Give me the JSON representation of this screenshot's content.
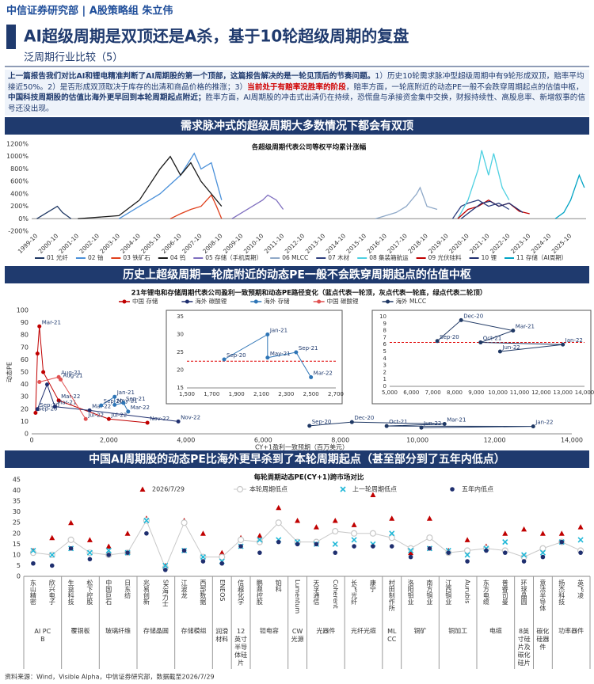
{
  "header": {
    "org": "中信证券研究部 | A股策略组 朱立伟",
    "title": "AI超级周期是双顶还是A杀，基于10轮超级周期的复盘",
    "subtitle": "泛周期行业比较（5）"
  },
  "summary": [
    {
      "text": "上一篇报告我们对比AI和锂电精准判断了AI周期股的第一个顶部，这篇报告解决的是一轮见顶后的节奏问题。",
      "style": "bold"
    },
    {
      "text": "1）历史10轮需求脉冲型超级周期中有9轮形成双顶，赔率平均接近50%。2）是否形成双顶取决于库存的出清和商品价格的推涨；3）",
      "style": "normal"
    },
    {
      "text": "当前处于有赔率没胜率的阶段",
      "style": "alert"
    },
    {
      "text": "，赔率方面，一轮底附近的动态PE一般不会跌穿周期起点的估值中枢，",
      "style": "normal"
    },
    {
      "text": "中国科技周期股的估值比海外更早回到本轮周期起点附近；",
      "style": "bold"
    },
    {
      "text": "胜率方面，AI周期股的冲击式出清仍在持续，恐慌盘与承接资金集中交换，财报持续性、高股息率、新增叙事的信号还没出现。",
      "style": "normal"
    }
  ],
  "sections": [
    "需求脉冲式的超级周期大多数情况下都会有双顶",
    "历史上超级周期一轮底附近的动态PE一般不会跌穿周期起点的估值中枢",
    "中国AI周期股的动态PE比海外更早杀到了本轮周期起点（甚至部分到了五年内低点）"
  ],
  "chart_data": [
    {
      "type": "line",
      "title": "各超级周期代表公司等权平均累计涨幅",
      "xlim": [
        "1999-07",
        "2026-07"
      ],
      "xticks": [
        "1999-10",
        "2000-10",
        "2001-10",
        "2002-10",
        "2003-10",
        "2004-10",
        "2005-10",
        "2006-10",
        "2007-10",
        "2008-10",
        "2009-10",
        "2010-10",
        "2011-10",
        "2012-10",
        "2013-10",
        "2014-10",
        "2015-10",
        "2016-10",
        "2017-10",
        "2018-10",
        "2019-10",
        "2020-10",
        "2021-10",
        "2022-10",
        "2023-10",
        "2024-10",
        "2025-10"
      ],
      "ylim": [
        -200,
        1200
      ],
      "yticks": [
        {
          "value": -200,
          "label": "-200%"
        },
        {
          "value": 0,
          "label": "0%"
        },
        {
          "value": 200,
          "label": "200%"
        },
        {
          "value": 400,
          "label": "400%"
        },
        {
          "value": 600,
          "label": "600%"
        },
        {
          "value": 800,
          "label": "800%"
        },
        {
          "value": 1000,
          "label": "1000%"
        },
        {
          "value": 1200,
          "label": "1200%"
        }
      ],
      "series": [
        {
          "name": "01 光纤",
          "color": "#1f3864",
          "x": [
            "1999-10",
            "2000-04",
            "2000-10",
            "2001-01",
            "2001-06"
          ],
          "values": [
            0,
            100,
            200,
            100,
            0
          ]
        },
        {
          "name": "02 铀",
          "color": "#4a90d9",
          "x": [
            "2003-10",
            "2004-10",
            "2005-10",
            "2006-10",
            "2007-06",
            "2007-10",
            "2008-04",
            "2008-10"
          ],
          "values": [
            0,
            200,
            400,
            700,
            1050,
            800,
            900,
            300
          ]
        },
        {
          "name": "03 铁矿石",
          "color": "#e0401c",
          "x": [
            "2006-04",
            "2006-10",
            "2007-04",
            "2007-10",
            "2008-04",
            "2008-07",
            "2008-10"
          ],
          "values": [
            0,
            80,
            150,
            200,
            380,
            200,
            0
          ]
        },
        {
          "name": "04 钨",
          "color": "#1a1a1a",
          "x": [
            "2001-10",
            "2003-10",
            "2004-10",
            "2005-10",
            "2006-04",
            "2006-10",
            "2007-04",
            "2007-10",
            "2008-10"
          ],
          "values": [
            0,
            50,
            300,
            800,
            1000,
            700,
            900,
            600,
            200
          ]
        },
        {
          "name": "05 存储（手机周期）",
          "color": "#7f6fbf",
          "x": [
            "2009-04",
            "2010-04",
            "2010-10",
            "2011-01",
            "2011-06",
            "2011-10"
          ],
          "values": [
            0,
            200,
            300,
            380,
            300,
            150
          ]
        },
        {
          "name": "06 MLCC",
          "color": "#8fa9c8",
          "x": [
            "2016-04",
            "2017-04",
            "2017-10",
            "2018-04",
            "2018-06",
            "2018-10",
            "2019-04"
          ],
          "values": [
            0,
            100,
            200,
            400,
            500,
            200,
            150
          ]
        },
        {
          "name": "07 木材",
          "color": "#2e3f7f",
          "x": [
            "2020-01",
            "2020-06",
            "2020-10",
            "2021-04",
            "2021-10",
            "2022-04",
            "2022-10"
          ],
          "values": [
            0,
            200,
            250,
            300,
            200,
            250,
            150
          ]
        },
        {
          "name": "08 集装箱航运",
          "color": "#4dd0e1",
          "x": [
            "2020-04",
            "2020-10",
            "2021-04",
            "2021-06",
            "2021-10",
            "2022-01",
            "2022-06",
            "2022-10"
          ],
          "values": [
            0,
            300,
            800,
            1100,
            700,
            1050,
            500,
            300
          ]
        },
        {
          "name": "09 光伏硅料",
          "color": "#c00000",
          "x": [
            "2020-04",
            "2020-10",
            "2021-04",
            "2021-10",
            "2022-04",
            "2022-10",
            "2023-04",
            "2023-10"
          ],
          "values": [
            0,
            150,
            200,
            300,
            200,
            250,
            120,
            80
          ]
        },
        {
          "name": "10 锂",
          "color": "#1f2f6f",
          "x": [
            "2020-06",
            "2021-01",
            "2021-06",
            "2021-11",
            "2022-04",
            "2022-10",
            "2023-06"
          ],
          "values": [
            0,
            150,
            250,
            280,
            200,
            250,
            100
          ]
        },
        {
          "name": "11 存储（AI周期）",
          "color": "#00a3c4",
          "x": [
            "2025-01",
            "2025-06",
            "2025-10",
            "2026-03",
            "2026-06"
          ],
          "values": [
            0,
            100,
            300,
            700,
            500
          ]
        }
      ]
    },
    {
      "type": "scatter",
      "title": "21年锂电和存储周期代表公司盈利一致预期和动态PE路径变化（蓝点代表一轮顶，灰点代表一轮底，绿点代表二轮顶）",
      "x_label": "CY+1盈利一致预期（百万美元）",
      "y_label": "动态PE",
      "legend": true,
      "xlim": [
        0,
        14000
      ],
      "xticks": [
        0,
        {
          "value": 2000,
          "label": "2,000"
        },
        {
          "value": 4000,
          "label": "4,000"
        },
        {
          "value": 6000,
          "label": "6,000"
        },
        {
          "value": 8000,
          "label": "8,000"
        },
        {
          "value": 10000,
          "label": "10,000"
        },
        {
          "value": 12000,
          "label": "12,000"
        },
        {
          "value": 14000,
          "label": "14,000"
        }
      ],
      "ylim": [
        0,
        100
      ],
      "yticks": [
        0,
        10,
        20,
        30,
        40,
        50,
        60,
        70,
        80,
        90,
        100
      ],
      "series": [
        {
          "name": "中国 存储",
          "color": "#c00000",
          "x": [
            100,
            150,
            200,
            300,
            700,
            2000,
            3000
          ],
          "values": [
            17,
            65,
            87,
            50,
            27,
            12,
            9
          ],
          "point_labels": [
            "Sep-20",
            null,
            "Mar-21",
            null,
            "Mar-22",
            "Jul-22",
            "Nov-22"
          ]
        },
        {
          "name": "海外 碳酸锂",
          "color": "#1f2f6f",
          "x": [
            150,
            400,
            600,
            1500,
            3800
          ],
          "values": [
            20,
            40,
            22,
            19,
            10
          ],
          "point_labels": [
            "Sep-20",
            null,
            "Mar-21",
            "Mar-22",
            "Nov-22"
          ]
        },
        {
          "name": "海外 存储",
          "color": "#2e75b6",
          "x": [
            1800,
            2150,
            2150,
            2380,
            2500
          ],
          "values": [
            23,
            30,
            23.5,
            25,
            18
          ],
          "point_labels": [
            "Sep-20",
            "Jan-21",
            "May-21",
            "Sep-21",
            "Mar-22"
          ]
        },
        {
          "name": "中国 碳酸锂",
          "color": "#e05050",
          "x": [
            200,
            700,
            750,
            1400
          ],
          "values": [
            42,
            46,
            44,
            12
          ],
          "point_labels": [
            null,
            "Aug-21",
            "Aug-21",
            "Jul-22"
          ]
        },
        {
          "name": "海外 MLCC",
          "color": "#1f3864",
          "x": [
            7200,
            8300,
            10700,
            9200,
            13000,
            10100
          ],
          "values": [
            6.5,
            9.5,
            8,
            6.3,
            6,
            5
          ],
          "point_labels": [
            "Sep-20",
            "Dec-20",
            "Mar-21",
            "Oct-21",
            "Jan-22",
            "Jun-22"
          ]
        }
      ]
    },
    {
      "type": "scatter",
      "xlim": [
        1500,
        2700
      ],
      "xticks": [
        {
          "value": 1500,
          "label": "1,500"
        },
        {
          "value": 1700,
          "label": "1,700"
        },
        {
          "value": 1900,
          "label": "1,900"
        },
        {
          "value": 2100,
          "label": "2,100"
        },
        {
          "value": 2300,
          "label": "2,300"
        },
        {
          "value": 2500,
          "label": "2,500"
        },
        {
          "value": 2700,
          "label": "2,700"
        }
      ],
      "ylim": [
        15,
        35
      ],
      "yticks": [
        15,
        20,
        25,
        30,
        35
      ],
      "reference_y": 22.5,
      "series": [
        {
          "color": "#2e75b6",
          "x": [
            1800,
            2150,
            2150,
            2380,
            2500
          ],
          "values": [
            23,
            30,
            23.5,
            25,
            18
          ],
          "point_labels": [
            "Sep-20",
            "Jan-21",
            "May-21",
            "Sep-21",
            "Mar-22"
          ]
        }
      ]
    },
    {
      "type": "scatter",
      "xlim": [
        5000,
        14000
      ],
      "xticks": [
        {
          "value": 5000,
          "label": "5,000"
        },
        {
          "value": 6000,
          "label": "6,000"
        },
        {
          "value": 7000,
          "label": "7,000"
        },
        {
          "value": 8000,
          "label": "8,000"
        },
        {
          "value": 9000,
          "label": "9,000"
        },
        {
          "value": 10000,
          "label": "10,000"
        },
        {
          "value": 11000,
          "label": "11,000"
        },
        {
          "value": 12000,
          "label": "12,000"
        },
        {
          "value": 13000,
          "label": "13,000"
        },
        {
          "value": 14000,
          "label": "14,000"
        }
      ],
      "ylim": [
        0,
        10
      ],
      "yticks": [
        0,
        1,
        2,
        3,
        4,
        5,
        6,
        7,
        8,
        9,
        10
      ],
      "reference_y": 6.3,
      "series": [
        {
          "color": "#1f3864",
          "x": [
            7200,
            8300,
            10700,
            9200,
            13000,
            10100
          ],
          "values": [
            6.5,
            9.5,
            8,
            6.3,
            6,
            5
          ],
          "point_labels": [
            "Sep-20",
            "Dec-20",
            "Mar-21",
            "Oct-21",
            "Jan-22",
            "Jun-22"
          ]
        }
      ]
    },
    {
      "type": "dot",
      "title": "每轮周期动态PE(CY+1)跨市场对比",
      "ylim": [
        0,
        45
      ],
      "yticks": [
        0,
        5,
        10,
        15,
        20,
        25,
        30,
        35,
        40,
        45
      ],
      "categories": [
        "东山精密",
        "欣兴电子",
        "生益科技",
        "松下控股",
        "中国巨石",
        "日东纺",
        "兆易创新",
        "SK海力士",
        "江波龙",
        "西部数据",
        "ENEOS",
        "信越化学",
        "鹏鼎控股",
        "铂科",
        "Lumentum",
        "天孚通信",
        "Coherent",
        "长飞光纤",
        "康宁",
        "村田制作所",
        "洛阳钼业",
        "南方铜业",
        "江西铜业",
        "Aurubis",
        "东方电缆",
        "普睿司曼",
        "环球晶圆",
        "意法半导体",
        "扬杰科技",
        "英飞凌"
      ],
      "category_groups": [
        "AI PCB",
        null,
        "覆铜板",
        null,
        "玻璃纤维",
        null,
        "存储晶圆",
        null,
        "存储模组",
        null,
        "润滑材料",
        "12英寸半导体硅片",
        "钽电容",
        null,
        "CW光源",
        "光器件",
        null,
        "光纤光缆",
        null,
        "MLCC",
        "铜矿",
        null,
        "铜加工",
        null,
        "电缆",
        null,
        "8英寸硅片及碳化硅片",
        "碳化硅器件",
        "功率器件",
        null
      ],
      "series": [
        {
          "name": "2026/7/29",
          "color": "#c00000",
          "marker": "triangle",
          "values": [
            12,
            18,
            25,
            17,
            14,
            20,
            27,
            5,
            26,
            20,
            11,
            18,
            19,
            32,
            26,
            23,
            26,
            24,
            38,
            27,
            11,
            27,
            12,
            17,
            14,
            20,
            22,
            20,
            20,
            23
          ]
        },
        {
          "name": "本轮周期低点",
          "color": "#c8c8c8",
          "marker": "circle-line",
          "values": [
            11,
            10,
            17,
            11,
            10,
            11,
            26,
            4,
            25,
            9,
            9,
            17,
            16,
            25,
            16,
            16,
            21,
            20,
            20,
            18,
            13,
            18,
            11,
            12,
            13,
            12,
            9,
            13,
            16,
            12
          ]
        },
        {
          "name": "上一轮周期低点",
          "color": "#21b8d8",
          "marker": "cross",
          "values": [
            12,
            10,
            13,
            11,
            12,
            11,
            26,
            5,
            12,
            9,
            7,
            14,
            17,
            17,
            16,
            15,
            15,
            17,
            15,
            20,
            12,
            13,
            12,
            10,
            13,
            16,
            10,
            11,
            16,
            17
          ]
        },
        {
          "name": "五年内低点",
          "color": "#1f2f6f",
          "marker": "dot",
          "values": [
            6,
            5,
            13,
            8,
            10,
            11,
            20,
            3,
            12,
            7,
            6,
            14,
            11,
            16,
            15,
            15,
            11,
            14,
            14,
            14,
            9,
            13,
            11,
            7,
            12,
            11,
            7,
            9,
            16,
            11
          ]
        }
      ]
    }
  ],
  "footer": "资料来源：Wind，Visible Alpha，中信证券研究部，数据截至2026/7/29"
}
